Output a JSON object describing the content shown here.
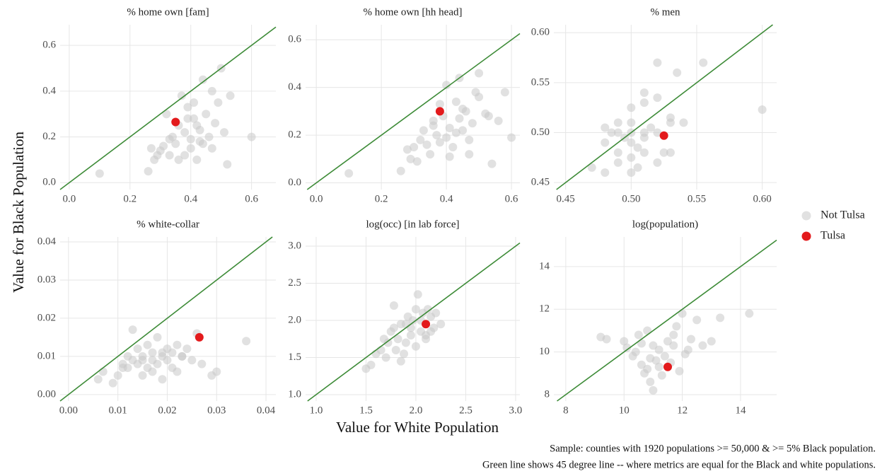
{
  "x_label": "Value for White Population",
  "y_label": "Value for Black Population",
  "caption": [
    "Sample: counties with 1920 populations >= 50,000 & >= 5% Black population.",
    "Green line shows 45 degree line -- where metrics are equal for the Black and white populations."
  ],
  "legend": "right",
  "chart_data": [
    {
      "type": "scatter",
      "title": "% home own [fam]",
      "grid": true,
      "reference_line": {
        "slope": 1,
        "intercept": 0,
        "color": "#3d8b37"
      },
      "xlim": [
        -0.03,
        0.68
      ],
      "ylim": [
        -0.03,
        0.69
      ],
      "xticks": [
        {
          "value": 0,
          "label": "0.0"
        },
        0.2,
        0.4,
        0.6
      ],
      "yticks": [
        {
          "value": 0,
          "label": "0.0"
        },
        0.2,
        0.4,
        0.6
      ],
      "series": [
        {
          "name": "Not Tulsa",
          "color": "#c8c8c8",
          "x": [
            0.1,
            0.26,
            0.27,
            0.28,
            0.3,
            0.31,
            0.32,
            0.33,
            0.34,
            0.35,
            0.36,
            0.37,
            0.38,
            0.38,
            0.39,
            0.4,
            0.4,
            0.41,
            0.42,
            0.42,
            0.43,
            0.44,
            0.45,
            0.46,
            0.47,
            0.48,
            0.49,
            0.5,
            0.51,
            0.52,
            0.53,
            0.6,
            0.36,
            0.41,
            0.44,
            0.39,
            0.47,
            0.33,
            0.29,
            0.43
          ],
          "values": [
            0.04,
            0.05,
            0.15,
            0.1,
            0.14,
            0.16,
            0.3,
            0.12,
            0.2,
            0.17,
            0.25,
            0.38,
            0.22,
            0.12,
            0.28,
            0.15,
            0.19,
            0.35,
            0.1,
            0.25,
            0.18,
            0.45,
            0.3,
            0.2,
            0.4,
            0.26,
            0.35,
            0.5,
            0.22,
            0.08,
            0.38,
            0.2,
            0.1,
            0.28,
            0.17,
            0.33,
            0.15,
            0.19,
            0.12,
            0.23
          ]
        },
        {
          "name": "Tulsa",
          "color": "#e31a1c",
          "x": [
            0.35
          ],
          "values": [
            0.265
          ]
        }
      ]
    },
    {
      "type": "scatter",
      "title": "% home own [hh head]",
      "grid": true,
      "reference_line": {
        "slope": 1,
        "intercept": 0,
        "color": "#3d8b37"
      },
      "xlim": [
        -0.033,
        0.626
      ],
      "ylim": [
        -0.028,
        0.663
      ],
      "xticks": [
        {
          "value": 0,
          "label": "0.0"
        },
        0.2,
        0.4,
        0.6
      ],
      "yticks": [
        {
          "value": 0,
          "label": "0.0"
        },
        0.2,
        0.4,
        0.6
      ],
      "series": [
        {
          "name": "Not Tulsa",
          "color": "#c8c8c8",
          "x": [
            0.1,
            0.26,
            0.28,
            0.3,
            0.31,
            0.32,
            0.33,
            0.35,
            0.36,
            0.37,
            0.38,
            0.39,
            0.4,
            0.4,
            0.41,
            0.42,
            0.43,
            0.44,
            0.45,
            0.46,
            0.47,
            0.48,
            0.49,
            0.5,
            0.52,
            0.54,
            0.56,
            0.58,
            0.6,
            0.34,
            0.41,
            0.44,
            0.38,
            0.47,
            0.5,
            0.43,
            0.36,
            0.53,
            0.29,
            0.45
          ],
          "values": [
            0.04,
            0.05,
            0.14,
            0.15,
            0.09,
            0.18,
            0.22,
            0.12,
            0.26,
            0.2,
            0.17,
            0.28,
            0.41,
            0.19,
            0.23,
            0.15,
            0.34,
            0.44,
            0.22,
            0.3,
            0.18,
            0.25,
            0.38,
            0.46,
            0.29,
            0.08,
            0.26,
            0.38,
            0.19,
            0.16,
            0.11,
            0.27,
            0.33,
            0.12,
            0.36,
            0.21,
            0.24,
            0.28,
            0.1,
            0.31
          ]
        },
        {
          "name": "Tulsa",
          "color": "#e31a1c",
          "x": [
            0.38
          ],
          "values": [
            0.3
          ]
        }
      ]
    },
    {
      "type": "scatter",
      "title": "% men",
      "grid": true,
      "reference_line": {
        "slope": 1,
        "intercept": 0,
        "color": "#3d8b37"
      },
      "xlim": [
        0.441,
        0.611
      ],
      "ylim": [
        0.443,
        0.608
      ],
      "xticks": [
        0.45,
        {
          "value": 0.5,
          "label": "0.50"
        },
        0.55,
        {
          "value": 0.6,
          "label": "0.60"
        }
      ],
      "yticks": [
        0.45,
        {
          "value": 0.5,
          "label": "0.50"
        },
        0.55,
        {
          "value": 0.6,
          "label": "0.60"
        }
      ],
      "series": [
        {
          "name": "Not Tulsa",
          "color": "#c8c8c8",
          "x": [
            0.47,
            0.48,
            0.48,
            0.49,
            0.49,
            0.49,
            0.5,
            0.5,
            0.5,
            0.5,
            0.51,
            0.51,
            0.51,
            0.51,
            0.52,
            0.52,
            0.52,
            0.53,
            0.53,
            0.535,
            0.54,
            0.555,
            0.6,
            0.495,
            0.505,
            0.515,
            0.5,
            0.49,
            0.51,
            0.525,
            0.52,
            0.5,
            0.48,
            0.505,
            0.485,
            0.53
          ],
          "values": [
            0.465,
            0.46,
            0.49,
            0.47,
            0.5,
            0.48,
            0.49,
            0.51,
            0.46,
            0.525,
            0.5,
            0.53,
            0.48,
            0.54,
            0.5,
            0.47,
            0.57,
            0.515,
            0.48,
            0.56,
            0.51,
            0.57,
            0.523,
            0.495,
            0.485,
            0.505,
            0.475,
            0.51,
            0.495,
            0.48,
            0.535,
            0.5,
            0.505,
            0.465,
            0.5,
            0.51
          ]
        },
        {
          "name": "Tulsa",
          "color": "#e31a1c",
          "x": [
            0.525
          ],
          "values": [
            0.497
          ]
        }
      ]
    },
    {
      "type": "scatter",
      "title": "% white-collar",
      "grid": true,
      "reference_line": {
        "slope": 1,
        "intercept": 0,
        "color": "#3d8b37"
      },
      "xlim": [
        -0.0017,
        0.042
      ],
      "ylim": [
        -0.0017,
        0.0413
      ],
      "xticks": [
        {
          "value": 0,
          "label": "0.00"
        },
        0.01,
        0.02,
        0.03,
        0.04
      ],
      "yticks": [
        {
          "value": 0,
          "label": "0.00"
        },
        0.01,
        0.02,
        0.03,
        0.04
      ],
      "series": [
        {
          "name": "Not Tulsa",
          "color": "#c8c8c8",
          "x": [
            0.006,
            0.007,
            0.009,
            0.01,
            0.011,
            0.012,
            0.012,
            0.013,
            0.013,
            0.014,
            0.014,
            0.015,
            0.015,
            0.016,
            0.016,
            0.017,
            0.017,
            0.018,
            0.018,
            0.019,
            0.019,
            0.02,
            0.02,
            0.021,
            0.021,
            0.022,
            0.022,
            0.023,
            0.024,
            0.025,
            0.026,
            0.027,
            0.029,
            0.03,
            0.036,
            0.015,
            0.019,
            0.023,
            0.011,
            0.017
          ],
          "values": [
            0.004,
            0.006,
            0.003,
            0.005,
            0.008,
            0.007,
            0.01,
            0.017,
            0.009,
            0.008,
            0.012,
            0.005,
            0.01,
            0.007,
            0.013,
            0.009,
            0.011,
            0.008,
            0.015,
            0.01,
            0.004,
            0.012,
            0.009,
            0.007,
            0.011,
            0.013,
            0.006,
            0.01,
            0.012,
            0.009,
            0.016,
            0.008,
            0.005,
            0.006,
            0.014,
            0.009,
            0.011,
            0.01,
            0.007,
            0.006
          ]
        },
        {
          "name": "Tulsa",
          "color": "#e31a1c",
          "x": [
            0.0265
          ],
          "values": [
            0.015
          ]
        }
      ]
    },
    {
      "type": "scatter",
      "title": "log(occ) [in lab force]",
      "grid": true,
      "reference_line": {
        "slope": 1,
        "intercept": 0,
        "color": "#3d8b37"
      },
      "xlim": [
        0.894,
        3.043
      ],
      "ylim": [
        0.914,
        3.124
      ],
      "xticks": [
        {
          "value": 1,
          "label": "1.0"
        },
        1.5,
        {
          "value": 2,
          "label": "2.0"
        },
        2.5,
        {
          "value": 3,
          "label": "3.0"
        }
      ],
      "yticks": [
        {
          "value": 1,
          "label": "1.0"
        },
        1.5,
        {
          "value": 2,
          "label": "2.0"
        },
        2.5,
        {
          "value": 3,
          "label": "3.0"
        }
      ],
      "series": [
        {
          "name": "Not Tulsa",
          "color": "#c8c8c8",
          "x": [
            1.5,
            1.55,
            1.6,
            1.65,
            1.7,
            1.72,
            1.75,
            1.78,
            1.8,
            1.82,
            1.85,
            1.88,
            1.9,
            1.92,
            1.95,
            1.97,
            2.0,
            2.02,
            2.05,
            2.07,
            2.1,
            2.12,
            2.15,
            2.18,
            2.2,
            2.25,
            1.85,
            1.95,
            2.05,
            2.1,
            1.78,
            2.0,
            2.15,
            1.68,
            1.9
          ],
          "values": [
            1.35,
            1.4,
            1.55,
            1.6,
            1.5,
            1.7,
            1.85,
            2.2,
            1.6,
            1.75,
            1.95,
            1.55,
            1.7,
            2.05,
            1.8,
            2.0,
            1.65,
            2.35,
            1.85,
            2.1,
            1.75,
            2.15,
            2.05,
            1.9,
            2.1,
            1.95,
            1.45,
            1.9,
            2.0,
            1.8,
            1.9,
            2.15,
            1.85,
            1.75,
            1.95
          ]
        },
        {
          "name": "Tulsa",
          "color": "#e31a1c",
          "x": [
            2.1
          ],
          "values": [
            1.95
          ]
        }
      ]
    },
    {
      "type": "scatter",
      "title": "log(population)",
      "grid": true,
      "reference_line": {
        "slope": 1,
        "intercept": 0,
        "color": "#3d8b37"
      },
      "xlim": [
        7.59,
        15.24
      ],
      "ylim": [
        7.7,
        15.39
      ],
      "xticks": [
        8,
        10,
        12,
        14
      ],
      "yticks": [
        8,
        10,
        12,
        14
      ],
      "series": [
        {
          "name": "Not Tulsa",
          "color": "#c8c8c8",
          "x": [
            9.2,
            9.4,
            10.0,
            10.1,
            10.3,
            10.4,
            10.5,
            10.6,
            10.7,
            10.8,
            10.9,
            11.0,
            11.0,
            11.1,
            11.2,
            11.3,
            11.4,
            11.5,
            11.6,
            11.7,
            11.8,
            11.9,
            12.0,
            12.1,
            12.3,
            12.5,
            12.7,
            13.0,
            13.3,
            14.3,
            10.8,
            10.6,
            11.2,
            10.9,
            11.7,
            12.2
          ],
          "values": [
            10.7,
            10.6,
            10.5,
            10.2,
            9.8,
            10.0,
            10.8,
            9.4,
            9.0,
            11.0,
            8.6,
            10.3,
            8.2,
            9.6,
            10.1,
            8.9,
            9.8,
            10.5,
            9.5,
            10.3,
            11.2,
            9.1,
            11.8,
            9.9,
            10.6,
            11.5,
            10.3,
            10.5,
            11.6,
            11.8,
            9.2,
            10.4,
            9.3,
            9.7,
            10.8,
            10.1
          ]
        },
        {
          "name": "Tulsa",
          "color": "#e31a1c",
          "x": [
            11.5
          ],
          "values": [
            9.3
          ]
        }
      ]
    }
  ]
}
